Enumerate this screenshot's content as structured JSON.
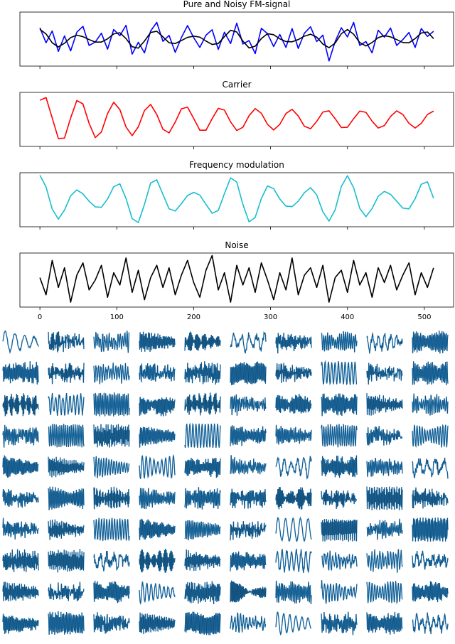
{
  "chart_data": [
    {
      "type": "line",
      "title": "Pure and Noisy FM-signal",
      "x": [
        0,
        8,
        16,
        24,
        32,
        40,
        48,
        56,
        64,
        72,
        80,
        88,
        96,
        104,
        112,
        120,
        128,
        136,
        144,
        152,
        160,
        168,
        176,
        184,
        192,
        200,
        208,
        216,
        224,
        232,
        240,
        248,
        256,
        264,
        272,
        280,
        288,
        296,
        304,
        312,
        320,
        328,
        336,
        344,
        352,
        360,
        368,
        376,
        384,
        392,
        400,
        408,
        416,
        424,
        432,
        440,
        448,
        456,
        464,
        472,
        480,
        488,
        496,
        504,
        512
      ],
      "series": [
        {
          "color": "#0000ff",
          "values": [
            0.46,
            -0.15,
            0.33,
            -0.5,
            0.13,
            -0.48,
            0.28,
            0.52,
            -0.26,
            -0.12,
            0.24,
            -0.41,
            0.39,
            0.14,
            0.56,
            -0.61,
            -0.13,
            -0.56,
            0.33,
            0.68,
            -0.09,
            0.15,
            -0.54,
            0.06,
            0.55,
            0.06,
            -0.34,
            0.16,
            0.38,
            -0.42,
            0.28,
            -0.18,
            0.65,
            -0.2,
            -0.06,
            -0.59,
            0.44,
            0.22,
            -0.3,
            0.19,
            -0.34,
            0.43,
            -0.38,
            0.24,
            0.5,
            -0.1,
            0.16,
            -0.89,
            -0.1,
            0.46,
            0.09,
            0.68,
            -0.26,
            -0.1,
            -0.56,
            0.36,
            0.08,
            0.45,
            -0.26,
            -0.02,
            0.27,
            -0.34,
            0.43,
            0.11,
            0.32
          ]
        },
        {
          "color": "#000000",
          "values": [
            0.4,
            0.21,
            -0.15,
            -0.32,
            -0.17,
            0.06,
            0.16,
            0.1,
            -0.02,
            -0.12,
            -0.12,
            0.01,
            0.21,
            0.26,
            0.02,
            -0.31,
            -0.37,
            -0.08,
            0.27,
            0.32,
            0.09,
            -0.15,
            -0.18,
            -0.06,
            0.07,
            0.12,
            0.08,
            -0.08,
            -0.22,
            -0.18,
            0.1,
            0.36,
            0.29,
            -0.08,
            -0.36,
            -0.29,
            0.02,
            0.22,
            0.18,
            0.01,
            -0.1,
            -0.11,
            -0.02,
            0.12,
            0.2,
            0.08,
            -0.2,
            -0.35,
            -0.16,
            0.22,
            0.39,
            0.2,
            -0.14,
            -0.28,
            -0.14,
            0.06,
            0.14,
            0.09,
            -0.02,
            -0.14,
            -0.15,
            0.02,
            0.25,
            0.29,
            0.02
          ]
        }
      ],
      "xlim": [
        -26,
        538
      ],
      "xticks": [
        0,
        100,
        200,
        300,
        400,
        500
      ],
      "ylim": [
        -1.1,
        1.1
      ]
    },
    {
      "type": "line",
      "title": "Carrier",
      "x": [
        0,
        8,
        16,
        24,
        32,
        40,
        48,
        56,
        64,
        72,
        80,
        88,
        96,
        104,
        112,
        120,
        128,
        136,
        144,
        152,
        160,
        168,
        176,
        184,
        192,
        200,
        208,
        216,
        224,
        232,
        240,
        248,
        256,
        264,
        272,
        280,
        288,
        296,
        304,
        312,
        320,
        328,
        336,
        344,
        352,
        360,
        368,
        376,
        384,
        392,
        400,
        408,
        416,
        424,
        432,
        440,
        448,
        456,
        464,
        472,
        480,
        488,
        496,
        504,
        512
      ],
      "series": [
        {
          "color": "#ff0000",
          "values": [
            0.78,
            0.89,
            0.06,
            -0.78,
            -0.76,
            0.06,
            0.77,
            0.63,
            -0.16,
            -0.74,
            -0.51,
            0.24,
            0.7,
            0.4,
            -0.31,
            -0.66,
            -0.3,
            0.36,
            0.61,
            0.2,
            -0.4,
            -0.55,
            -0.11,
            0.43,
            0.5,
            0.04,
            -0.44,
            -0.44,
            0.03,
            0.45,
            0.38,
            -0.1,
            -0.45,
            -0.32,
            0.15,
            0.44,
            0.25,
            -0.2,
            -0.43,
            -0.2,
            0.24,
            0.41,
            0.14,
            -0.28,
            -0.38,
            -0.08,
            0.3,
            0.35,
            0.03,
            -0.33,
            -0.32,
            0.03,
            0.34,
            0.29,
            -0.07,
            -0.35,
            -0.25,
            0.12,
            0.35,
            0.2,
            -0.16,
            -0.35,
            -0.16,
            0.2,
            0.34
          ]
        }
      ],
      "xlim": [
        -26,
        538
      ],
      "xticks": [
        0,
        100,
        200,
        300,
        400,
        500
      ],
      "ylim": [
        -1.1,
        1.1
      ]
    },
    {
      "type": "line",
      "title": "Frequency modulation",
      "x": [
        0,
        8,
        16,
        24,
        32,
        40,
        48,
        56,
        64,
        72,
        80,
        88,
        96,
        104,
        112,
        120,
        128,
        136,
        144,
        152,
        160,
        168,
        176,
        184,
        192,
        200,
        208,
        216,
        224,
        232,
        240,
        248,
        256,
        264,
        272,
        280,
        288,
        296,
        304,
        312,
        320,
        328,
        336,
        344,
        352,
        360,
        368,
        376,
        384,
        392,
        400,
        408,
        416,
        424,
        432,
        440,
        448,
        456,
        464,
        472,
        480,
        488,
        496,
        504,
        512
      ],
      "series": [
        {
          "color": "#17becf",
          "values": [
            1.0,
            0.52,
            -0.38,
            -0.79,
            -0.42,
            0.16,
            0.4,
            0.24,
            -0.06,
            -0.29,
            -0.31,
            0.03,
            0.53,
            0.65,
            0.05,
            -0.77,
            -0.93,
            -0.19,
            0.68,
            0.81,
            0.22,
            -0.37,
            -0.46,
            -0.16,
            0.17,
            0.3,
            0.19,
            -0.19,
            -0.55,
            -0.44,
            0.25,
            0.89,
            0.72,
            -0.19,
            -0.9,
            -0.72,
            0.05,
            0.56,
            0.45,
            0.03,
            -0.26,
            -0.28,
            -0.06,
            0.29,
            0.49,
            0.2,
            -0.49,
            -0.87,
            -0.41,
            0.54,
            0.98,
            0.49,
            -0.35,
            -0.69,
            -0.36,
            0.14,
            0.34,
            0.22,
            -0.06,
            -0.34,
            -0.37,
            0.04,
            0.63,
            0.73,
            0.06
          ]
        }
      ],
      "xlim": [
        -26,
        538
      ],
      "xticks": [
        0,
        100,
        200,
        300,
        400,
        500
      ],
      "ylim": [
        -1.1,
        1.1
      ]
    },
    {
      "type": "line",
      "title": "Noise",
      "x": [
        0,
        8,
        16,
        24,
        32,
        40,
        48,
        56,
        64,
        72,
        80,
        88,
        96,
        104,
        112,
        120,
        128,
        136,
        144,
        152,
        160,
        168,
        176,
        184,
        192,
        200,
        208,
        216,
        224,
        232,
        240,
        248,
        256,
        264,
        272,
        280,
        288,
        296,
        304,
        312,
        320,
        328,
        336,
        344,
        352,
        360,
        368,
        376,
        384,
        392,
        400,
        408,
        416,
        424,
        432,
        440,
        448,
        456,
        464,
        472,
        480,
        488,
        496,
        504,
        512
      ],
      "series": [
        {
          "color": "#000000",
          "values": [
            0.1,
            -0.6,
            0.8,
            -0.3,
            0.5,
            -0.9,
            0.2,
            0.7,
            -0.4,
            0.0,
            0.6,
            -0.7,
            0.3,
            -0.2,
            0.9,
            -0.5,
            0.4,
            -0.8,
            0.1,
            0.6,
            -0.3,
            0.5,
            -0.6,
            0.2,
            0.8,
            -0.1,
            -0.7,
            0.4,
            1.0,
            -0.4,
            0.3,
            -0.9,
            0.6,
            -0.2,
            0.5,
            -0.5,
            0.7,
            0.0,
            -0.8,
            0.3,
            -0.4,
            0.9,
            -0.6,
            0.2,
            0.5,
            -0.3,
            0.6,
            -0.9,
            0.1,
            0.4,
            -0.5,
            0.8,
            -0.2,
            0.3,
            -0.7,
            0.5,
            -0.1,
            0.6,
            -0.4,
            0.2,
            0.7,
            -0.6,
            0.3,
            -0.3,
            0.5
          ]
        }
      ],
      "xlim": [
        -26,
        538
      ],
      "xticks": [
        0,
        100,
        200,
        300,
        400,
        500
      ],
      "ylim": [
        -1.1,
        1.1
      ]
    }
  ]
}
